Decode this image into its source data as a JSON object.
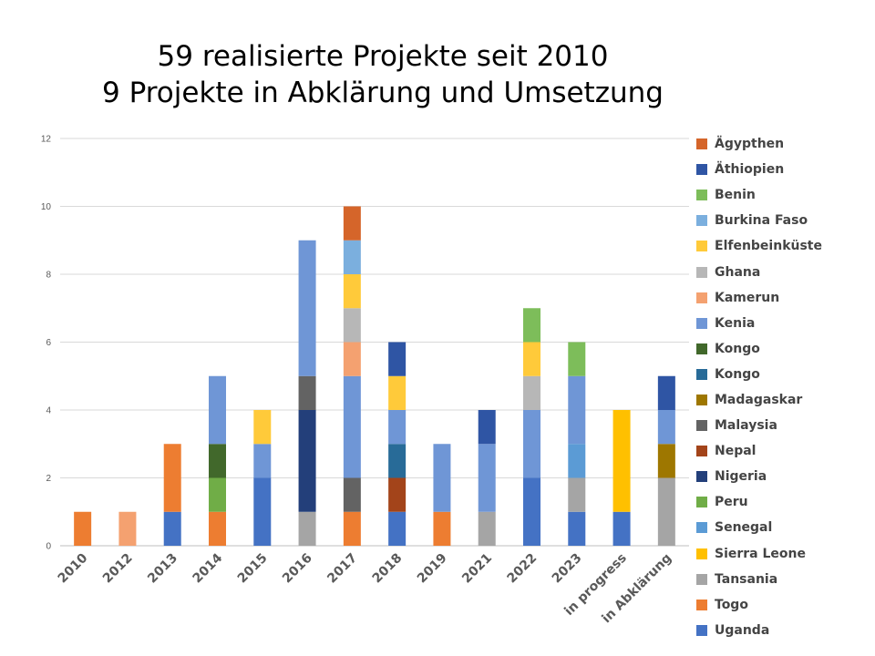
{
  "title_lines": [
    "59 realisierte Projekte seit 2010",
    "9 Projekte in Abklärung und Umsetzung"
  ],
  "chart_data": {
    "type": "bar",
    "stacked": true,
    "title": "59 realisierte Projekte seit 2010\n9 Projekte in Abklärung und Umsetzung",
    "xlabel": "",
    "ylabel": "",
    "ylim": [
      0,
      12
    ],
    "yticks": [
      0,
      2,
      4,
      6,
      8,
      10,
      12
    ],
    "grid": true,
    "legend_position": "right",
    "categories": [
      "2010",
      "2012",
      "2013",
      "2014",
      "2015",
      "2016",
      "2017",
      "2018",
      "2019",
      "2021",
      "2022",
      "2023",
      "in progress",
      "in Abklärung"
    ],
    "series": [
      {
        "name": "Ägypthen",
        "color": "#D5652A",
        "values": [
          0,
          0,
          0,
          0,
          0,
          0,
          1,
          0,
          0,
          0,
          0,
          0,
          0,
          0
        ]
      },
      {
        "name": "Äthiopien",
        "color": "#2F55A4",
        "values": [
          0,
          0,
          0,
          0,
          0,
          0,
          0,
          1,
          0,
          1,
          0,
          0,
          0,
          1
        ]
      },
      {
        "name": "Benin",
        "color": "#7DBD5A",
        "values": [
          0,
          0,
          0,
          0,
          0,
          0,
          0,
          0,
          0,
          0,
          1,
          1,
          0,
          0
        ]
      },
      {
        "name": "Burkina Faso",
        "color": "#7BAFDE",
        "values": [
          0,
          0,
          0,
          0,
          0,
          0,
          1,
          0,
          0,
          0,
          0,
          0,
          0,
          0
        ]
      },
      {
        "name": "Elfenbeinküste",
        "color": "#FFCA3A",
        "values": [
          0,
          0,
          0,
          0,
          1,
          0,
          1,
          1,
          0,
          0,
          1,
          0,
          0,
          0
        ]
      },
      {
        "name": "Ghana",
        "color": "#B7B7B7",
        "values": [
          0,
          0,
          0,
          0,
          0,
          0,
          1,
          0,
          0,
          0,
          1,
          0,
          0,
          0
        ]
      },
      {
        "name": "Kamerun",
        "color": "#F4A170",
        "values": [
          0,
          1,
          0,
          0,
          0,
          0,
          1,
          0,
          0,
          0,
          0,
          0,
          0,
          0
        ]
      },
      {
        "name": "Kenia",
        "color": "#6F96D6",
        "values": [
          0,
          0,
          0,
          2,
          1,
          4,
          3,
          1,
          2,
          2,
          2,
          2,
          0,
          1
        ]
      },
      {
        "name": "Kongo",
        "color": "#41682B",
        "values": [
          0,
          0,
          0,
          1,
          0,
          0,
          0,
          0,
          0,
          0,
          0,
          0,
          0,
          0
        ]
      },
      {
        "name": "Kongo",
        "color": "#286B98",
        "values": [
          0,
          0,
          0,
          0,
          0,
          0,
          0,
          1,
          0,
          0,
          0,
          0,
          0,
          0
        ]
      },
      {
        "name": "Madagaskar",
        "color": "#9E7700",
        "values": [
          0,
          0,
          0,
          0,
          0,
          0,
          0,
          0,
          0,
          0,
          0,
          0,
          0,
          1
        ]
      },
      {
        "name": "Malaysia",
        "color": "#636363",
        "values": [
          0,
          0,
          0,
          0,
          0,
          1,
          1,
          0,
          0,
          0,
          0,
          0,
          0,
          0
        ]
      },
      {
        "name": "Nepal",
        "color": "#A3441A",
        "values": [
          0,
          0,
          0,
          0,
          0,
          0,
          0,
          1,
          0,
          0,
          0,
          0,
          0,
          0
        ]
      },
      {
        "name": "Nigeria",
        "color": "#233F7A",
        "values": [
          0,
          0,
          0,
          0,
          0,
          3,
          0,
          0,
          0,
          0,
          0,
          0,
          0,
          0
        ]
      },
      {
        "name": "Peru",
        "color": "#70AD47",
        "values": [
          0,
          0,
          0,
          1,
          0,
          0,
          0,
          0,
          0,
          0,
          0,
          0,
          0,
          0
        ]
      },
      {
        "name": "Senegal",
        "color": "#5B9BD5",
        "values": [
          0,
          0,
          0,
          0,
          0,
          0,
          0,
          0,
          0,
          0,
          0,
          1,
          0,
          0
        ]
      },
      {
        "name": "Sierra Leone",
        "color": "#FFC000",
        "values": [
          0,
          0,
          0,
          0,
          0,
          0,
          0,
          0,
          0,
          0,
          0,
          0,
          3,
          0
        ]
      },
      {
        "name": "Tansania",
        "color": "#A5A5A5",
        "values": [
          0,
          0,
          0,
          0,
          0,
          1,
          0,
          0,
          0,
          1,
          0,
          1,
          0,
          2
        ]
      },
      {
        "name": "Togo",
        "color": "#ED7D31",
        "values": [
          1,
          0,
          2,
          1,
          0,
          0,
          1,
          0,
          1,
          0,
          0,
          0,
          0,
          0
        ]
      },
      {
        "name": "Uganda",
        "color": "#4472C4",
        "values": [
          0,
          0,
          1,
          0,
          2,
          0,
          0,
          1,
          0,
          0,
          2,
          1,
          1,
          0
        ]
      }
    ]
  }
}
